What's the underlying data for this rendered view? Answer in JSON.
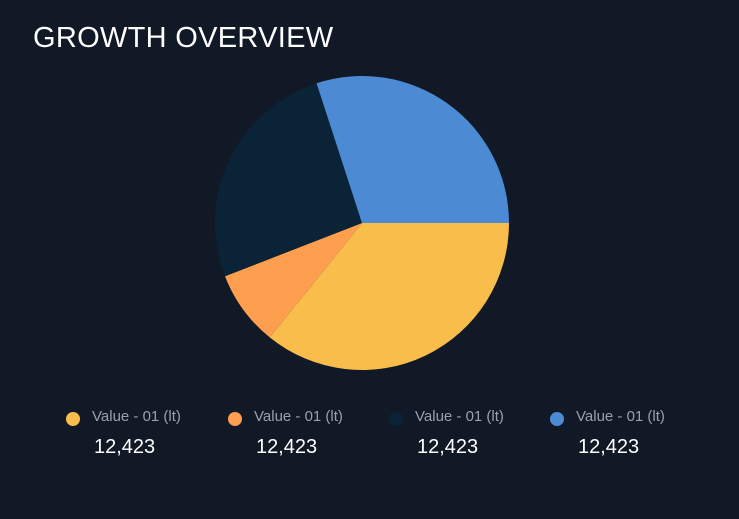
{
  "title": "GROWTH OVERVIEW",
  "chart_data": {
    "type": "pie",
    "title": "GROWTH OVERVIEW",
    "legend_placement": "bottom",
    "slices": [
      {
        "label": "Value - 01 (lt)",
        "display_value": "12,423",
        "share": 0.358,
        "color": "#f9bd4c"
      },
      {
        "label": "Value - 01 (lt)",
        "display_value": "12,423",
        "share": 0.083,
        "color": "#fe9f50"
      },
      {
        "label": "Value - 01 (lt)",
        "display_value": "12,423",
        "share": 0.259,
        "color": "#0a2336"
      },
      {
        "label": "Value - 01 (lt)",
        "display_value": "12,423",
        "share": 0.3,
        "color": "#4d8ad4"
      }
    ]
  }
}
